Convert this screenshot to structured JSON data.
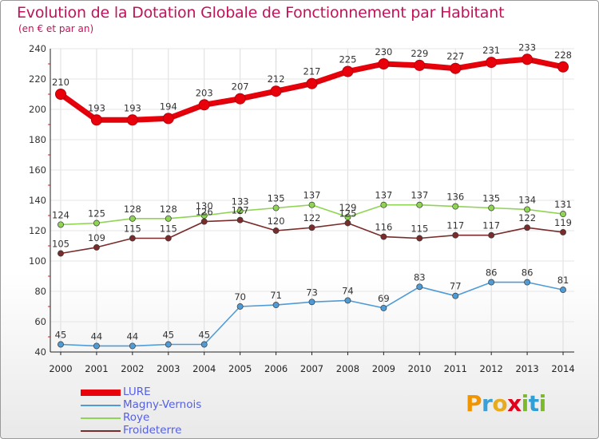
{
  "title": "Evolution de la Dotation Globale de Fonctionnement par Habitant",
  "subtitle": "(en € et par an)",
  "brand": {
    "name": "Proxiti",
    "letters": [
      "P",
      "r",
      "o",
      "x",
      "i",
      "t",
      "i"
    ]
  },
  "chart_data": {
    "type": "line",
    "title": "Evolution de la Dotation Globale de Fonctionnement par Habitant",
    "subtitle": "(en € et par an)",
    "xlabel": "",
    "ylabel": "",
    "ylim": [
      40,
      240
    ],
    "yticks": [
      40,
      60,
      80,
      100,
      120,
      140,
      160,
      180,
      200,
      220,
      240
    ],
    "x": [
      "2000",
      "2001",
      "2002",
      "2003",
      "2004",
      "2005",
      "2006",
      "2007",
      "2008",
      "2009",
      "2010",
      "2011",
      "2012",
      "2013",
      "2014"
    ],
    "legend_position": "bottom-left",
    "series": [
      {
        "name": "LURE",
        "color": "#e8000b",
        "emphasis": true,
        "values": [
          210,
          193,
          193,
          194,
          203,
          207,
          212,
          217,
          225,
          230,
          229,
          227,
          231,
          233,
          228
        ]
      },
      {
        "name": "Magny-Vernois",
        "color": "#4f9bd6",
        "values": [
          45,
          44,
          44,
          45,
          45,
          70,
          71,
          73,
          74,
          69,
          83,
          77,
          86,
          86,
          81
        ]
      },
      {
        "name": "Roye",
        "color": "#8fd454",
        "values": [
          124,
          125,
          128,
          128,
          130,
          133,
          135,
          137,
          129,
          137,
          137,
          136,
          135,
          134,
          131
        ]
      },
      {
        "name": "Froideterre",
        "color": "#7a2b2b",
        "values": [
          105,
          109,
          115,
          115,
          126,
          127,
          120,
          122,
          125,
          116,
          115,
          117,
          117,
          122,
          119
        ]
      }
    ]
  }
}
